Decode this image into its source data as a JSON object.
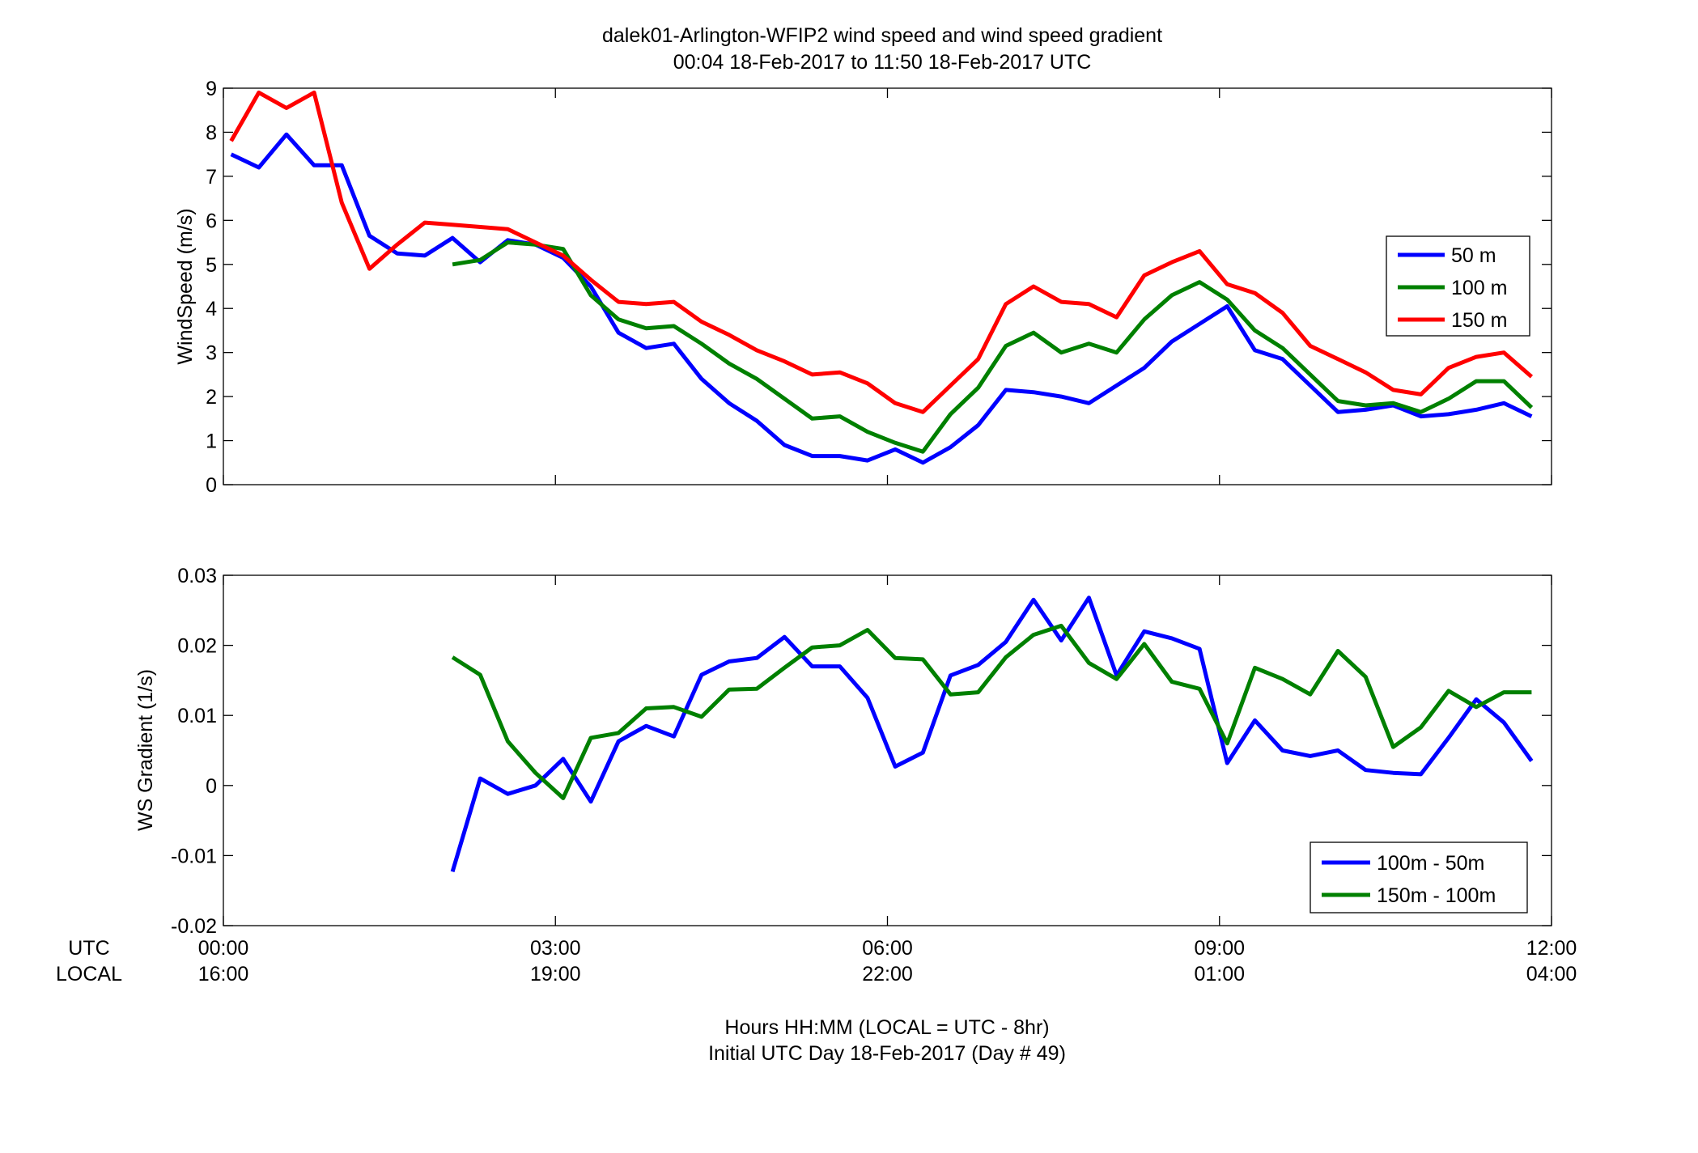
{
  "figure": {
    "title_line1": "dalek01-Arlington-WFIP2  wind speed and wind speed gradient",
    "title_line2": "00:04 18-Feb-2017 to 11:50 18-Feb-2017  UTC",
    "xlabel_line1": "Hours HH:MM  (LOCAL = UTC - 8hr)",
    "xlabel_line2": "Initial UTC Day 18-Feb-2017 (Day # 49)",
    "row_label_utc": "UTC",
    "row_label_local": "LOCAL",
    "x_ticks_utc": [
      "00:00",
      "03:00",
      "06:00",
      "09:00",
      "12:00"
    ],
    "x_ticks_local": [
      "16:00",
      "19:00",
      "22:00",
      "01:00",
      "04:00"
    ],
    "x_tick_hours": [
      0,
      3,
      6,
      9,
      12
    ]
  },
  "chart_data": [
    {
      "type": "line",
      "ylabel": "WindSpeed (m/s)",
      "xlim": [
        0,
        12
      ],
      "ylim": [
        0,
        9
      ],
      "yticks": [
        0,
        1,
        2,
        3,
        4,
        5,
        6,
        7,
        8,
        9
      ],
      "grid": false,
      "legend_position": "right",
      "x": [
        0.07,
        0.32,
        0.57,
        0.82,
        1.07,
        1.32,
        1.57,
        1.82,
        2.07,
        2.32,
        2.57,
        2.82,
        3.07,
        3.32,
        3.57,
        3.82,
        4.07,
        4.32,
        4.57,
        4.82,
        5.07,
        5.32,
        5.57,
        5.82,
        6.07,
        6.32,
        6.57,
        6.82,
        7.07,
        7.32,
        7.57,
        7.82,
        8.07,
        8.32,
        8.57,
        8.82,
        9.07,
        9.32,
        9.57,
        9.82,
        10.07,
        10.32,
        10.57,
        10.82,
        11.07,
        11.32,
        11.57,
        11.82
      ],
      "series": [
        {
          "name": "50 m",
          "color": "#0000ff",
          "values": [
            7.5,
            7.2,
            7.95,
            7.25,
            7.25,
            5.65,
            5.25,
            5.2,
            5.6,
            5.05,
            5.55,
            5.45,
            5.15,
            4.5,
            3.45,
            3.1,
            3.2,
            2.4,
            1.85,
            1.45,
            0.9,
            0.65,
            0.65,
            0.55,
            0.8,
            0.5,
            0.85,
            1.35,
            2.15,
            2.1,
            2.0,
            1.85,
            2.25,
            2.65,
            3.25,
            3.65,
            4.05,
            3.05,
            2.85,
            2.25,
            1.65,
            1.7,
            1.8,
            1.55,
            1.6,
            1.7,
            1.85,
            1.55
          ]
        },
        {
          "name": "100 m",
          "color": "#008000",
          "values": [
            null,
            null,
            null,
            null,
            null,
            null,
            null,
            null,
            5.0,
            5.1,
            5.5,
            5.45,
            5.35,
            4.3,
            3.75,
            3.55,
            3.6,
            3.2,
            2.75,
            2.4,
            1.95,
            1.5,
            1.55,
            1.2,
            0.95,
            0.75,
            1.6,
            2.2,
            3.15,
            3.45,
            3.0,
            3.2,
            3.0,
            3.75,
            4.3,
            4.6,
            4.2,
            3.5,
            3.1,
            2.5,
            1.9,
            1.8,
            1.85,
            1.65,
            1.95,
            2.35,
            2.35,
            1.75
          ]
        },
        {
          "name": "150 m",
          "color": "#ff0000",
          "values": [
            7.8,
            8.9,
            8.55,
            8.9,
            6.4,
            4.9,
            5.45,
            5.95,
            5.9,
            5.85,
            5.8,
            5.5,
            5.2,
            4.65,
            4.15,
            4.1,
            4.15,
            3.7,
            3.4,
            3.05,
            2.8,
            2.5,
            2.55,
            2.3,
            1.85,
            1.65,
            2.25,
            2.85,
            4.1,
            4.5,
            4.15,
            4.1,
            3.8,
            4.75,
            5.05,
            5.3,
            4.55,
            4.35,
            3.9,
            3.15,
            2.85,
            2.55,
            2.15,
            2.05,
            2.65,
            2.9,
            3.0,
            2.45
          ]
        }
      ]
    },
    {
      "type": "line",
      "ylabel": "WS Gradient (1/s)",
      "xlim": [
        0,
        12
      ],
      "ylim": [
        -0.02,
        0.03
      ],
      "yticks": [
        -0.02,
        -0.01,
        0,
        0.01,
        0.02,
        0.03
      ],
      "ytick_labels": [
        "-0.02",
        "-0.01",
        "0",
        "0.01",
        "0.02",
        "0.03"
      ],
      "grid": false,
      "legend_position": "bottom-right",
      "x": [
        0.07,
        0.32,
        0.57,
        0.82,
        1.07,
        1.32,
        1.57,
        1.82,
        2.07,
        2.32,
        2.57,
        2.82,
        3.07,
        3.32,
        3.57,
        3.82,
        4.07,
        4.32,
        4.57,
        4.82,
        5.07,
        5.32,
        5.57,
        5.82,
        6.07,
        6.32,
        6.57,
        6.82,
        7.07,
        7.32,
        7.57,
        7.82,
        8.07,
        8.32,
        8.57,
        8.82,
        9.07,
        9.32,
        9.57,
        9.82,
        10.07,
        10.32,
        10.57,
        10.82,
        11.07,
        11.32,
        11.57,
        11.82
      ],
      "series": [
        {
          "name": "100m - 50m",
          "color": "#0000ff",
          "values": [
            null,
            null,
            null,
            null,
            null,
            null,
            null,
            null,
            -0.0123,
            0.001,
            -0.0012,
            0.0,
            0.0038,
            -0.0023,
            0.0063,
            0.0085,
            0.007,
            0.0158,
            0.0177,
            0.0182,
            0.0212,
            0.017,
            0.017,
            0.0125,
            0.0027,
            0.0047,
            0.0157,
            0.0172,
            0.0205,
            0.0265,
            0.0207,
            0.0268,
            0.0157,
            0.022,
            0.021,
            0.0195,
            0.0032,
            0.0093,
            0.005,
            0.0042,
            0.005,
            0.0022,
            0.0018,
            0.0016,
            0.0068,
            0.0123,
            0.009,
            0.0035
          ]
        },
        {
          "name": "150m - 100m",
          "color": "#008000",
          "values": [
            null,
            null,
            null,
            null,
            null,
            null,
            null,
            null,
            0.0183,
            0.0158,
            0.0063,
            0.0018,
            -0.0018,
            0.0068,
            0.0075,
            0.011,
            0.0112,
            0.0098,
            0.0137,
            0.0138,
            0.0168,
            0.0197,
            0.02,
            0.0222,
            0.0182,
            0.018,
            0.013,
            0.0133,
            0.0183,
            0.0215,
            0.0228,
            0.0175,
            0.0152,
            0.0202,
            0.0148,
            0.0138,
            0.006,
            0.0168,
            0.0152,
            0.013,
            0.0192,
            0.0155,
            0.0055,
            0.0083,
            0.0135,
            0.0112,
            0.0133,
            0.0133
          ]
        }
      ]
    }
  ]
}
